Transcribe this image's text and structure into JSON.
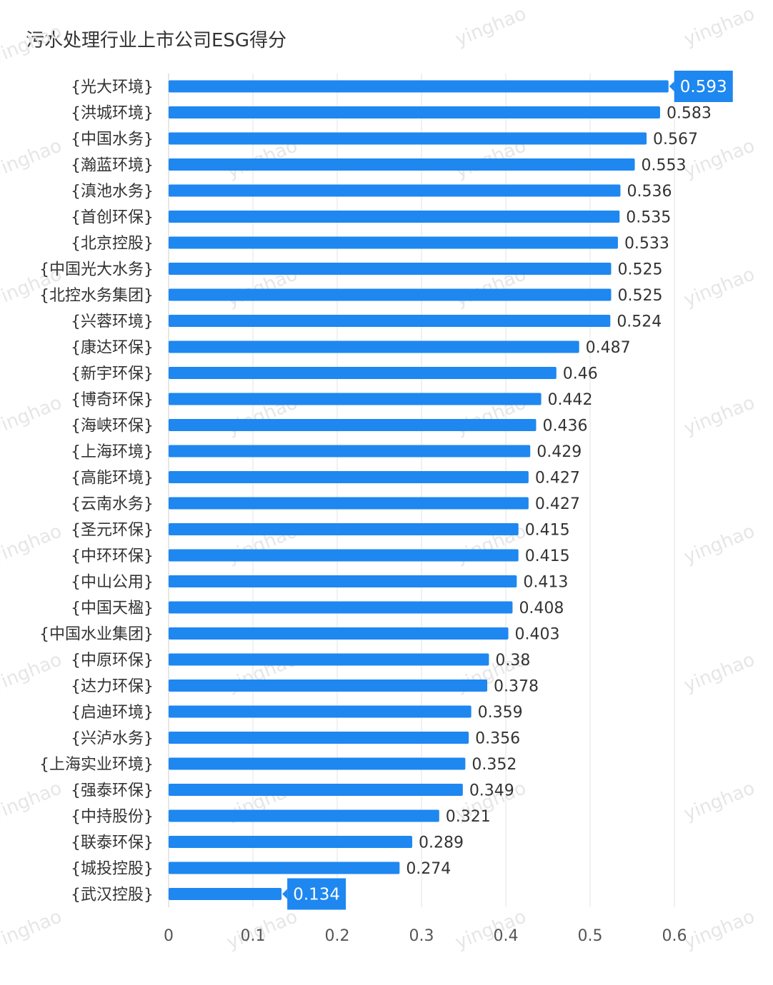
{
  "chart_data": {
    "type": "bar",
    "orientation": "horizontal",
    "title": "污水处理行业上市公司ESG得分",
    "categories": [
      "{光大环境}",
      "{洪城环境}",
      "{中国水务}",
      "{瀚蓝环境}",
      "{滇池水务}",
      "{首创环保}",
      "{北京控股}",
      "{中国光大水务}",
      "{北控水务集团}",
      "{兴蓉环境}",
      "{康达环保}",
      "{新宇环保}",
      "{博奇环保}",
      "{海峡环保}",
      "{上海环境}",
      "{高能环境}",
      "{云南水务}",
      "{圣元环保}",
      "{中环环保}",
      "{中山公用}",
      "{中国天楹}",
      "{中国水业集团}",
      "{中原环保}",
      "{达力环保}",
      "{启迪环境}",
      "{兴泸水务}",
      "{上海实业环境}",
      "{强泰环保}",
      "{中持股份}",
      "{联泰环保}",
      "{城投控股}",
      "{武汉控股}"
    ],
    "value_labels": [
      "0.593",
      "0.583",
      "0.567",
      "0.553",
      "0.536",
      "0.535",
      "0.533",
      "0.525",
      "0.525",
      "0.524",
      "0.487",
      "0.46",
      "0.442",
      "0.436",
      "0.429",
      "0.427",
      "0.427",
      "0.415",
      "0.415",
      "0.413",
      "0.408",
      "0.403",
      "0.38",
      "0.378",
      "0.359",
      "0.356",
      "0.352",
      "0.349",
      "0.321",
      "0.289",
      "0.274",
      "0.134"
    ],
    "values": [
      0.593,
      0.583,
      0.567,
      0.553,
      0.536,
      0.535,
      0.533,
      0.525,
      0.525,
      0.524,
      0.487,
      0.46,
      0.442,
      0.436,
      0.429,
      0.427,
      0.427,
      0.415,
      0.415,
      0.413,
      0.408,
      0.403,
      0.38,
      0.378,
      0.359,
      0.356,
      0.352,
      0.349,
      0.321,
      0.289,
      0.274,
      0.134
    ],
    "highlighted_indices": [
      0,
      31
    ],
    "xlim": [
      0,
      0.6
    ],
    "x_ticks": [
      "0",
      "0.1",
      "0.2",
      "0.3",
      "0.4",
      "0.5",
      "0.6"
    ],
    "x_tick_values": [
      0,
      0.1,
      0.2,
      0.3,
      0.4,
      0.5,
      0.6
    ],
    "grid": "vertical",
    "bar_color": "#1e87f0",
    "label_bg_color": "#1e87f0",
    "watermark": "yinghao"
  }
}
